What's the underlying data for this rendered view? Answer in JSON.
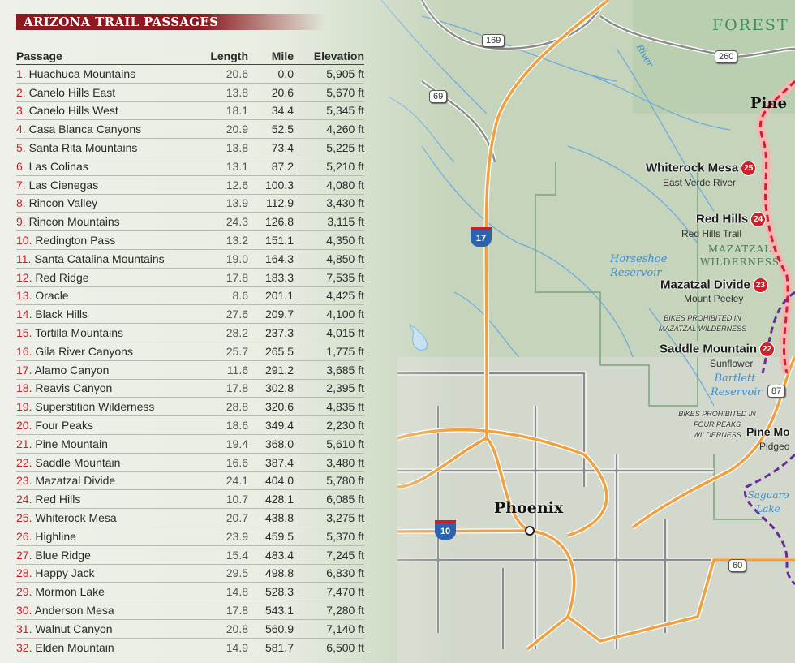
{
  "panel": {
    "title": "ARIZONA TRAIL PASSAGES",
    "columns": [
      "Passage",
      "Length",
      "Mile",
      "Elevation"
    ],
    "rows": [
      {
        "num": "1.",
        "name": "Huachuca Mountains",
        "length": "20.6",
        "mile": "0.0",
        "elevation": "5,905 ft"
      },
      {
        "num": "2.",
        "name": "Canelo Hills East",
        "length": "13.8",
        "mile": "20.6",
        "elevation": "5,670 ft"
      },
      {
        "num": "3.",
        "name": "Canelo Hills West",
        "length": "18.1",
        "mile": "34.4",
        "elevation": "5,345 ft"
      },
      {
        "num": "4.",
        "name": "Casa Blanca Canyons",
        "length": "20.9",
        "mile": "52.5",
        "elevation": "4,260 ft"
      },
      {
        "num": "5.",
        "name": "Santa Rita Mountains",
        "length": "13.8",
        "mile": "73.4",
        "elevation": "5,225 ft"
      },
      {
        "num": "6.",
        "name": "Las Colinas",
        "length": "13.1",
        "mile": "87.2",
        "elevation": "5,210 ft"
      },
      {
        "num": "7.",
        "name": "Las Cienegas",
        "length": "12.6",
        "mile": "100.3",
        "elevation": "4,080 ft"
      },
      {
        "num": "8.",
        "name": "Rincon Valley",
        "length": "13.9",
        "mile": "112.9",
        "elevation": "3,430 ft"
      },
      {
        "num": "9.",
        "name": "Rincon Mountains",
        "length": "24.3",
        "mile": "126.8",
        "elevation": "3,115 ft"
      },
      {
        "num": "10.",
        "name": "Redington Pass",
        "length": "13.2",
        "mile": "151.1",
        "elevation": "4,350 ft"
      },
      {
        "num": "11.",
        "name": "Santa Catalina Mountains",
        "length": "19.0",
        "mile": "164.3",
        "elevation": "4,850 ft"
      },
      {
        "num": "12.",
        "name": "Red Ridge",
        "length": "17.8",
        "mile": "183.3",
        "elevation": "7,535 ft"
      },
      {
        "num": "13.",
        "name": "Oracle",
        "length": "8.6",
        "mile": "201.1",
        "elevation": "4,425 ft"
      },
      {
        "num": "14.",
        "name": "Black Hills",
        "length": "27.6",
        "mile": "209.7",
        "elevation": "4,100 ft"
      },
      {
        "num": "15.",
        "name": "Tortilla Mountains",
        "length": "28.2",
        "mile": "237.3",
        "elevation": "4,015 ft"
      },
      {
        "num": "16.",
        "name": "Gila River Canyons",
        "length": "25.7",
        "mile": "265.5",
        "elevation": "1,775 ft"
      },
      {
        "num": "17.",
        "name": "Alamo Canyon",
        "length": "11.6",
        "mile": "291.2",
        "elevation": "3,685 ft"
      },
      {
        "num": "18.",
        "name": "Reavis Canyon",
        "length": "17.8",
        "mile": "302.8",
        "elevation": "2,395 ft"
      },
      {
        "num": "19.",
        "name": "Superstition Wilderness",
        "length": "28.8",
        "mile": "320.6",
        "elevation": "4,835 ft"
      },
      {
        "num": "20.",
        "name": "Four Peaks",
        "length": "18.6",
        "mile": "349.4",
        "elevation": "2,230 ft"
      },
      {
        "num": "21.",
        "name": "Pine Mountain",
        "length": "19.4",
        "mile": "368.0",
        "elevation": "5,610 ft"
      },
      {
        "num": "22.",
        "name": "Saddle Mountain",
        "length": "16.6",
        "mile": "387.4",
        "elevation": "3,480 ft"
      },
      {
        "num": "23.",
        "name": "Mazatzal Divide",
        "length": "24.1",
        "mile": "404.0",
        "elevation": "5,780 ft"
      },
      {
        "num": "24.",
        "name": "Red Hills",
        "length": "10.7",
        "mile": "428.1",
        "elevation": "6,085 ft"
      },
      {
        "num": "25.",
        "name": "Whiterock Mesa",
        "length": "20.7",
        "mile": "438.8",
        "elevation": "3,275 ft"
      },
      {
        "num": "26.",
        "name": "Highline",
        "length": "23.9",
        "mile": "459.5",
        "elevation": "5,370 ft"
      },
      {
        "num": "27.",
        "name": "Blue Ridge",
        "length": "15.4",
        "mile": "483.4",
        "elevation": "7,245 ft"
      },
      {
        "num": "28.",
        "name": "Happy Jack",
        "length": "29.5",
        "mile": "498.8",
        "elevation": "6,830 ft"
      },
      {
        "num": "29.",
        "name": "Mormon Lake",
        "length": "14.8",
        "mile": "528.3",
        "elevation": "7,470 ft"
      },
      {
        "num": "30.",
        "name": "Anderson Mesa",
        "length": "17.8",
        "mile": "543.1",
        "elevation": "7,280 ft"
      },
      {
        "num": "31.",
        "name": "Walnut Canyon",
        "length": "20.8",
        "mile": "560.9",
        "elevation": "7,140 ft"
      },
      {
        "num": "32.",
        "name": "Elden Mountain",
        "length": "14.9",
        "mile": "581.7",
        "elevation": "6,500 ft"
      }
    ]
  },
  "map": {
    "forest_label": "FOREST",
    "town_pine": "Pine",
    "city": "Phoenix",
    "river_label": "River",
    "wilderness": "MAZATZAL WILDERNESS",
    "water": {
      "horseshoe": "Horseshoe Reservoir",
      "bartlett": "Bartlett Reservoir",
      "saguaro": "Saguaro Lake"
    },
    "notes": {
      "mazatzal": "BIKES PROHIBITED IN MAZATZAL WILDERNESS",
      "fourpeaks": "BIKES PROHIBITED IN FOUR PEAKS WILDERNESS"
    },
    "trailheads": [
      {
        "name": "Whiterock Mesa",
        "badge": "25",
        "sub": "East Verde River"
      },
      {
        "name": "Red Hills",
        "badge": "24",
        "sub": "Red Hills Trail"
      },
      {
        "name": "Mazatzal Divide",
        "badge": "23",
        "sub": "Mount Peeley"
      },
      {
        "name": "Saddle Mountain",
        "badge": "22",
        "sub": "Sunflower"
      },
      {
        "name": "Pine Mo",
        "sub": "Pidgeo"
      }
    ],
    "shields": {
      "us169": "169",
      "sr69": "69",
      "sr260": "260",
      "i17": "17",
      "i10": "10",
      "us60": "60",
      "sr87": "87"
    },
    "colors": {
      "passage_red": "#c8202a",
      "trail_red": "#d0202a",
      "trail_purple": "#6a2a9a",
      "highway": "#f0a040",
      "water": "#3c8fd4"
    }
  }
}
